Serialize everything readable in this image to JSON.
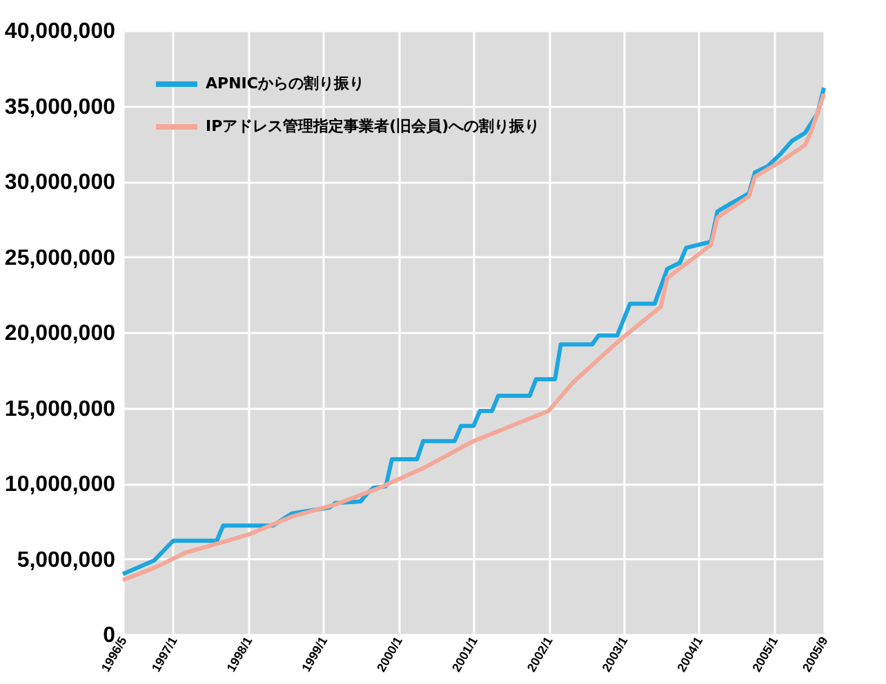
{
  "chart_data": {
    "type": "line",
    "series": [
      {
        "name": "APNICからの割り振り",
        "color": "#1ba6e0",
        "x": [
          "1996-05",
          "1996-10",
          "1997-01",
          "1997-08",
          "1997-09",
          "1998-05",
          "1998-08",
          "1999-02",
          "1999-03",
          "1999-07",
          "1999-08",
          "1999-09",
          "1999-11",
          "1999-12",
          "2000-04",
          "2000-05",
          "2000-10",
          "2000-11",
          "2001-01",
          "2001-02",
          "2001-04",
          "2001-05",
          "2001-10",
          "2001-11",
          "2002-02",
          "2002-03",
          "2002-08",
          "2002-09",
          "2002-12",
          "2003-02",
          "2003-06",
          "2003-08",
          "2003-10",
          "2003-11",
          "2004-03",
          "2004-04",
          "2004-06",
          "2004-09",
          "2004-10",
          "2004-12",
          "2005-02",
          "2005-04",
          "2005-06",
          "2005-08",
          "2005-09"
        ],
        "values": [
          4000000,
          4900000,
          6200000,
          6200000,
          7200000,
          7200000,
          8000000,
          8400000,
          8700000,
          8800000,
          9300000,
          9700000,
          9800000,
          11600000,
          11600000,
          12800000,
          12800000,
          13800000,
          13800000,
          14800000,
          14800000,
          15800000,
          15800000,
          16900000,
          16900000,
          19200000,
          19200000,
          19800000,
          19800000,
          21900000,
          21900000,
          24200000,
          24600000,
          25600000,
          26000000,
          28000000,
          28500000,
          29200000,
          30600000,
          31000000,
          31800000,
          32700000,
          33200000,
          34500000,
          36200000
        ]
      },
      {
        "name": "IPアドレス管理指定事業者(旧会員)への割り振り",
        "color": "#f4a898",
        "x": [
          "1996-05",
          "1996-10",
          "1997-03",
          "1997-08",
          "1998-01",
          "1998-08",
          "1999-03",
          "1999-10",
          "2000-05",
          "2001-01",
          "2002-01",
          "2002-05",
          "2002-10",
          "2003-01",
          "2003-07",
          "2003-08",
          "2004-03",
          "2004-04",
          "2004-09",
          "2004-10",
          "2005-02",
          "2005-06",
          "2005-07",
          "2005-09"
        ],
        "values": [
          3600000,
          4400000,
          5400000,
          6000000,
          6600000,
          7800000,
          8600000,
          9700000,
          11000000,
          12800000,
          14800000,
          16700000,
          18600000,
          19700000,
          21700000,
          23600000,
          25800000,
          27600000,
          29000000,
          30300000,
          31300000,
          32400000,
          33300000,
          35800000
        ]
      }
    ],
    "xlim": [
      "1996-05",
      "2005-09"
    ],
    "xticks": [
      {
        "value": "1996-05",
        "label": "1996/5"
      },
      {
        "value": "1997-01",
        "label": "1997/1"
      },
      {
        "value": "1998-01",
        "label": "1998/1"
      },
      {
        "value": "1999-01",
        "label": "1999/1"
      },
      {
        "value": "2000-01",
        "label": "2000/1"
      },
      {
        "value": "2001-01",
        "label": "2001/1"
      },
      {
        "value": "2002-01",
        "label": "2002/1"
      },
      {
        "value": "2003-01",
        "label": "2003/1"
      },
      {
        "value": "2004-01",
        "label": "2004/1"
      },
      {
        "value": "2005-01",
        "label": "2005/1"
      },
      {
        "value": "2005-09",
        "label": "2005/9"
      }
    ],
    "ylim": [
      0,
      40000000
    ],
    "yticks": [
      0,
      {
        "value": 5000000,
        "label": "5,000,000"
      },
      {
        "value": 10000000,
        "label": "10,000,000"
      },
      {
        "value": 15000000,
        "label": "15,000,000"
      },
      {
        "value": 20000000,
        "label": "20,000,000"
      },
      {
        "value": 25000000,
        "label": "25,000,000"
      },
      {
        "value": 30000000,
        "label": "30,000,000"
      },
      {
        "value": 35000000,
        "label": "35,000,000"
      },
      {
        "value": 40000000,
        "label": "40,000,000"
      }
    ],
    "grid": true,
    "legend": "top left",
    "marker": "none",
    "line_style": "solid"
  }
}
